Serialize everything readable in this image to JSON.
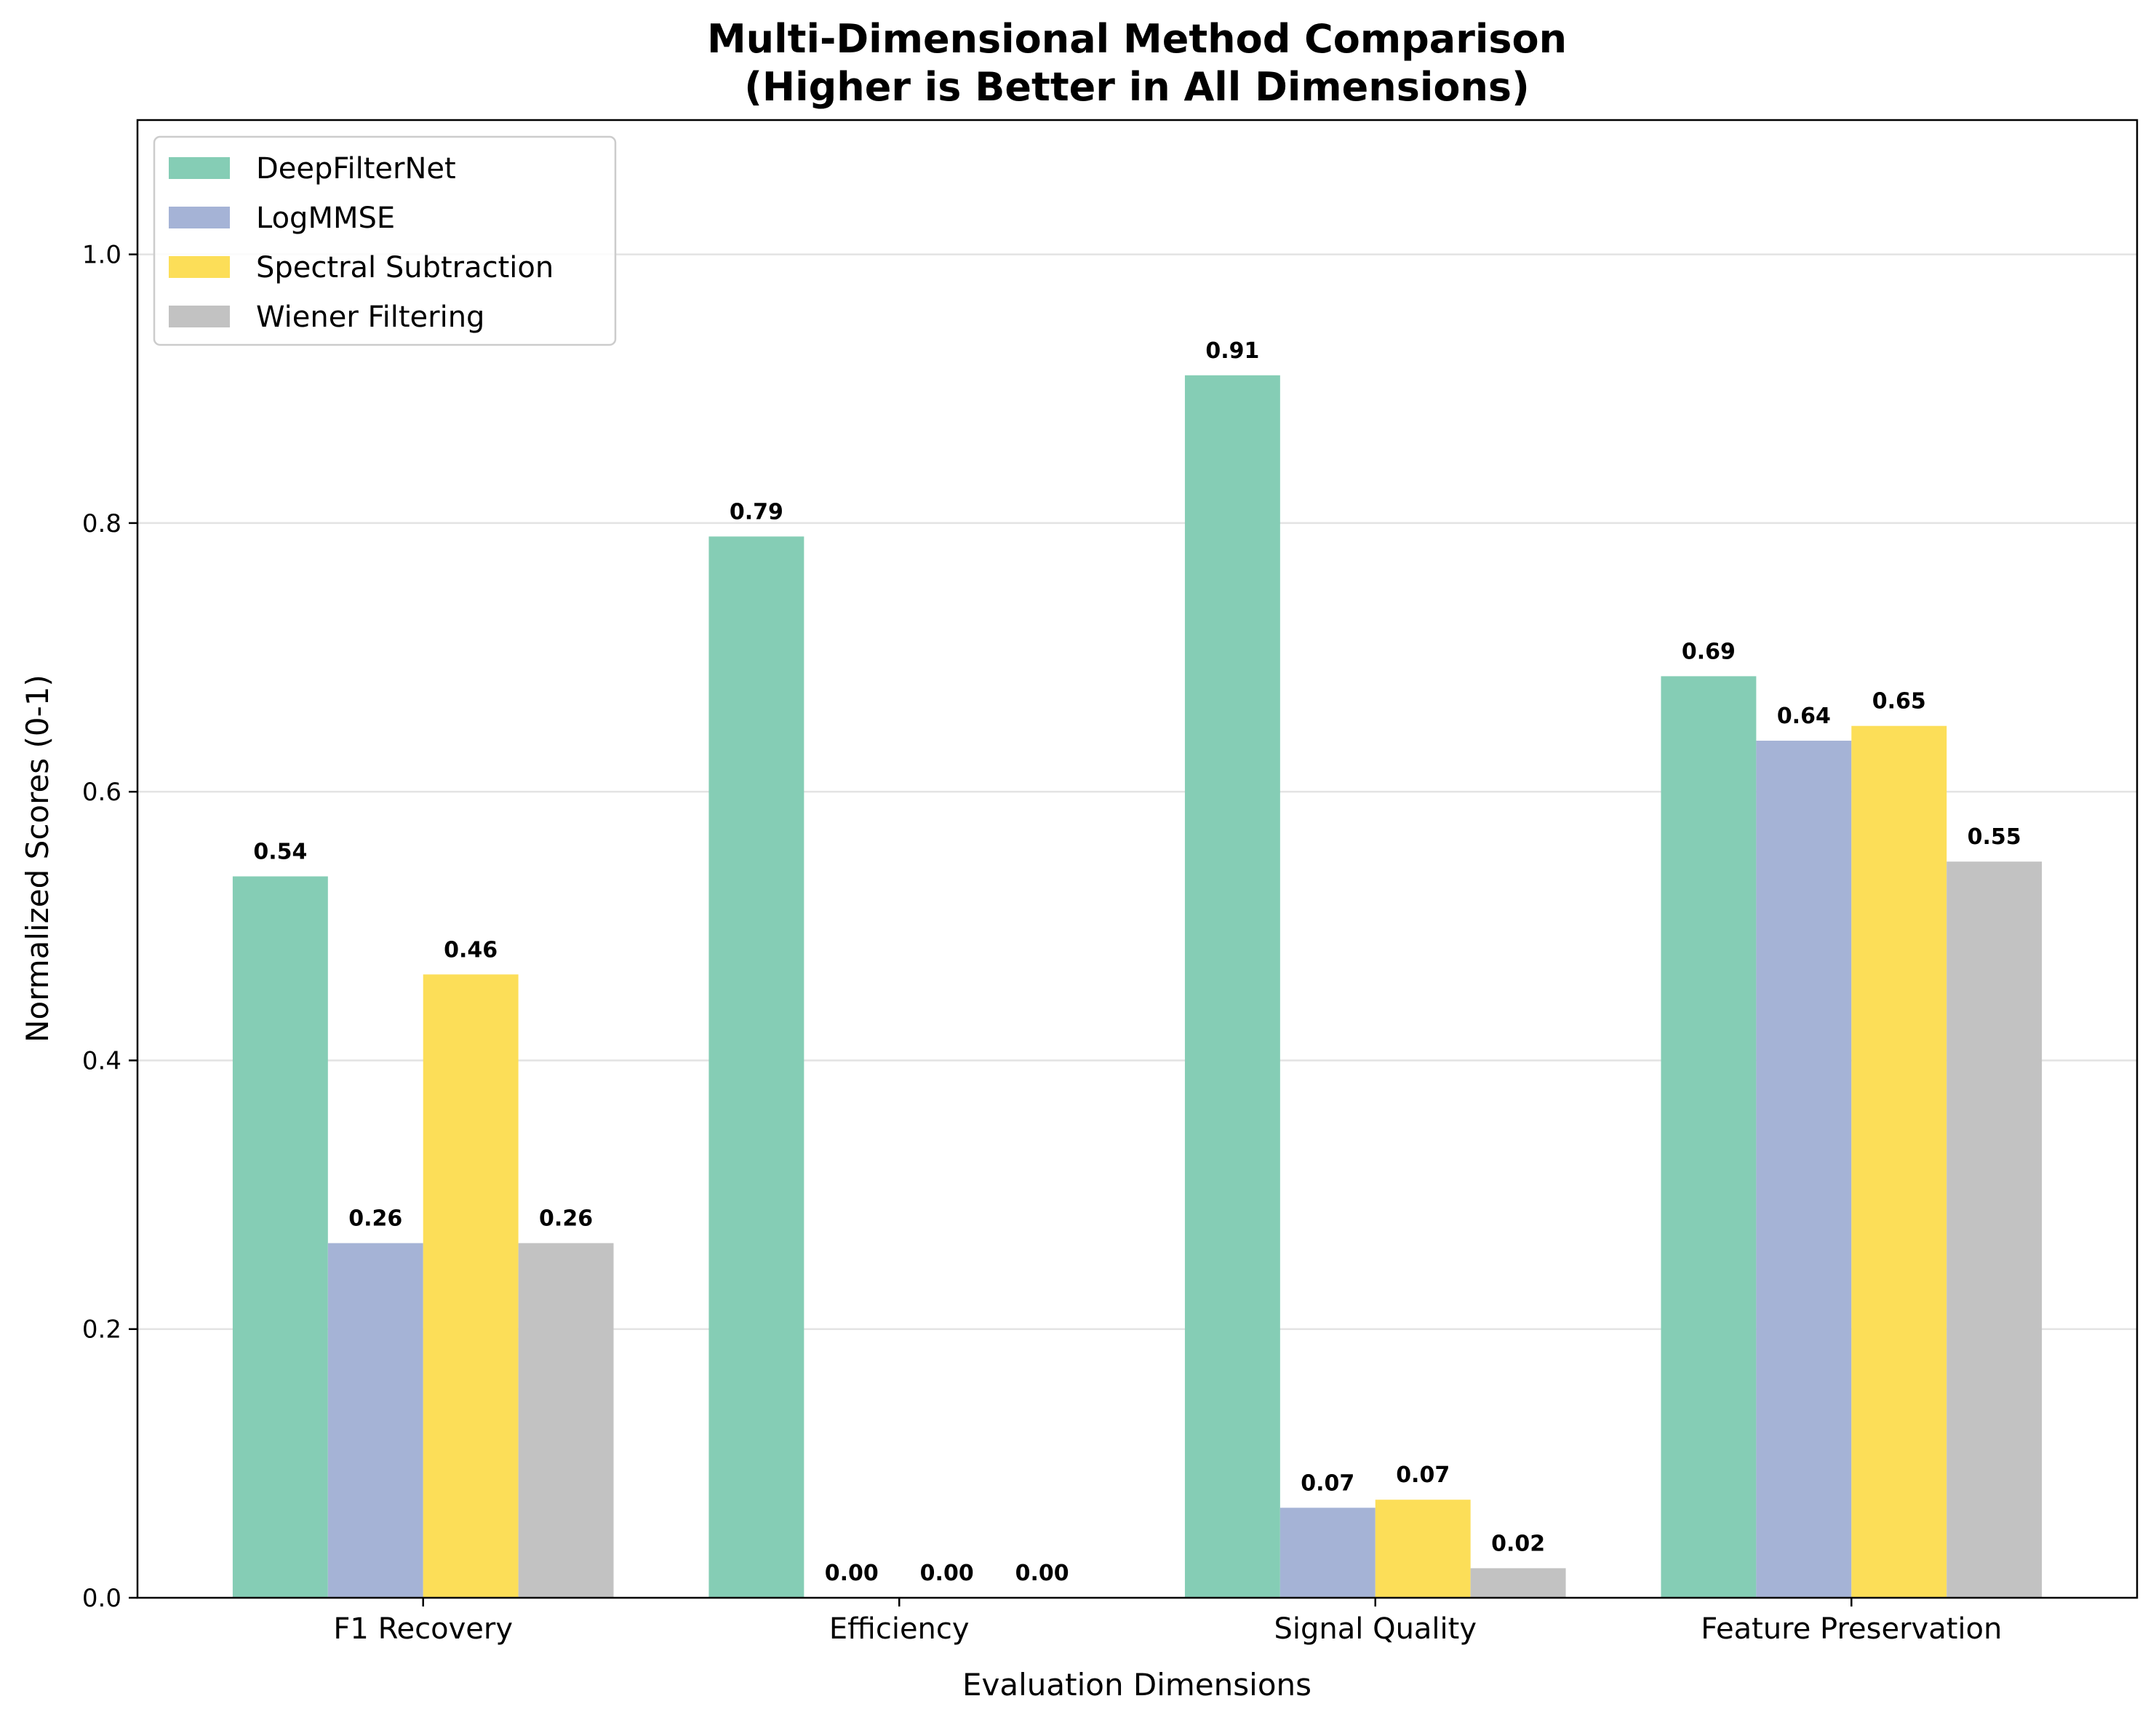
{
  "chart_data": {
    "type": "bar",
    "title": [
      "Multi-Dimensional Method Comparison",
      "(Higher is Better in All Dimensions)"
    ],
    "xlabel": "Evaluation Dimensions",
    "ylabel": "Normalized Scores (0-1)",
    "ylim": [
      0,
      1.1
    ],
    "yticks": [
      "0.0",
      "0.2",
      "0.4",
      "0.6",
      "0.8",
      "1.0"
    ],
    "grid": "horizontal",
    "legend_position": "top-left",
    "categories": [
      "F1 Recovery",
      "Efficiency",
      "Signal Quality",
      "Feature Preservation"
    ],
    "series": [
      {
        "name": "DeepFilterNet",
        "color": "#85cdb5",
        "values": [
          0.537,
          0.79,
          0.91,
          0.686
        ],
        "labels": [
          "0.54",
          "0.79",
          "0.91",
          "0.69"
        ]
      },
      {
        "name": "LogMMSE",
        "color": "#a5b3d6",
        "values": [
          0.264,
          0.0,
          0.067,
          0.638
        ],
        "labels": [
          "0.26",
          "0.00",
          "0.07",
          "0.64"
        ]
      },
      {
        "name": "Spectral Subtraction",
        "color": "#fcde58",
        "values": [
          0.464,
          0.0,
          0.073,
          0.649
        ],
        "labels": [
          "0.46",
          "0.00",
          "0.07",
          "0.65"
        ]
      },
      {
        "name": "Wiener Filtering",
        "color": "#c2c2c2",
        "values": [
          0.264,
          0.0,
          0.022,
          0.548
        ],
        "labels": [
          "0.26",
          "0.00",
          "0.02",
          "0.55"
        ]
      }
    ]
  }
}
